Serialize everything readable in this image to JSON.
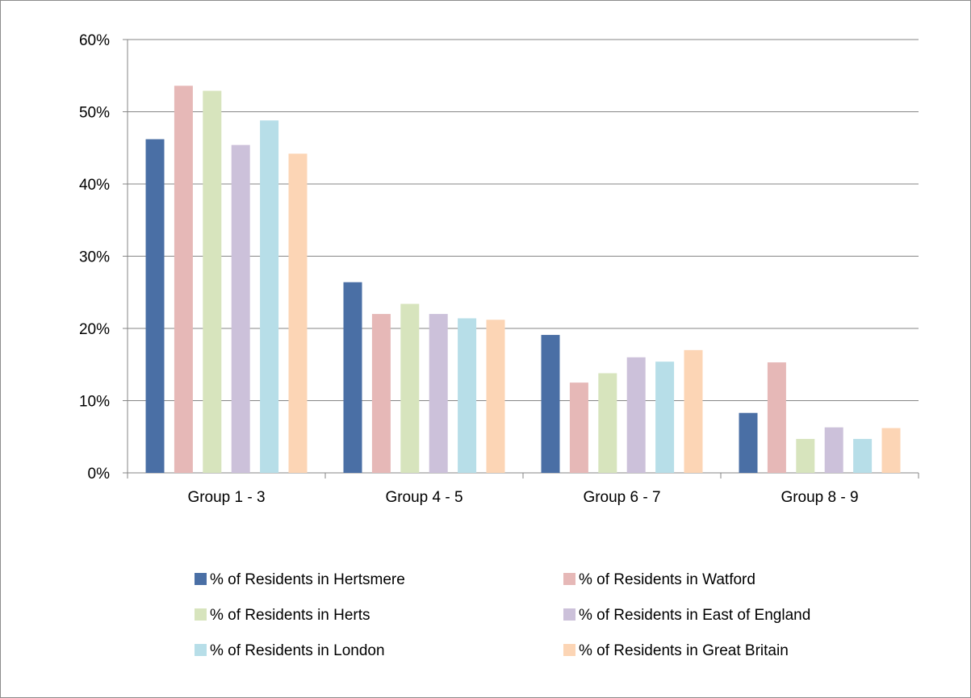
{
  "chart_data": {
    "type": "bar",
    "categories": [
      "Group 1 - 3",
      "Group  4 - 5",
      "Group 6 - 7",
      "Group 8 - 9"
    ],
    "series": [
      {
        "name": "% of Residents in Hertsmere",
        "color": "#4A6FA5",
        "values": [
          46.2,
          26.4,
          19.1,
          8.3
        ]
      },
      {
        "name": "% of Residents in Watford",
        "color": "#E6B8B7",
        "values": [
          53.6,
          22.0,
          12.5,
          15.3
        ]
      },
      {
        "name": "% of Residents in Herts",
        "color": "#D7E4BD",
        "values": [
          52.9,
          23.4,
          13.8,
          4.7
        ]
      },
      {
        "name": "% of Residents in East of England",
        "color": "#CCC1DA",
        "values": [
          45.4,
          22.0,
          16.0,
          6.3
        ]
      },
      {
        "name": "% of Residents in London",
        "color": "#B7DEE8",
        "values": [
          48.8,
          21.4,
          15.4,
          4.7
        ]
      },
      {
        "name": "% of Residents in Great Britain",
        "color": "#FCD5B5",
        "values": [
          44.2,
          21.2,
          17.0,
          6.2
        ]
      }
    ],
    "yticks": [
      "0%",
      "10%",
      "20%",
      "30%",
      "40%",
      "50%",
      "60%"
    ],
    "ylim": [
      0,
      60
    ],
    "grid": true,
    "legend_position": "bottom"
  }
}
